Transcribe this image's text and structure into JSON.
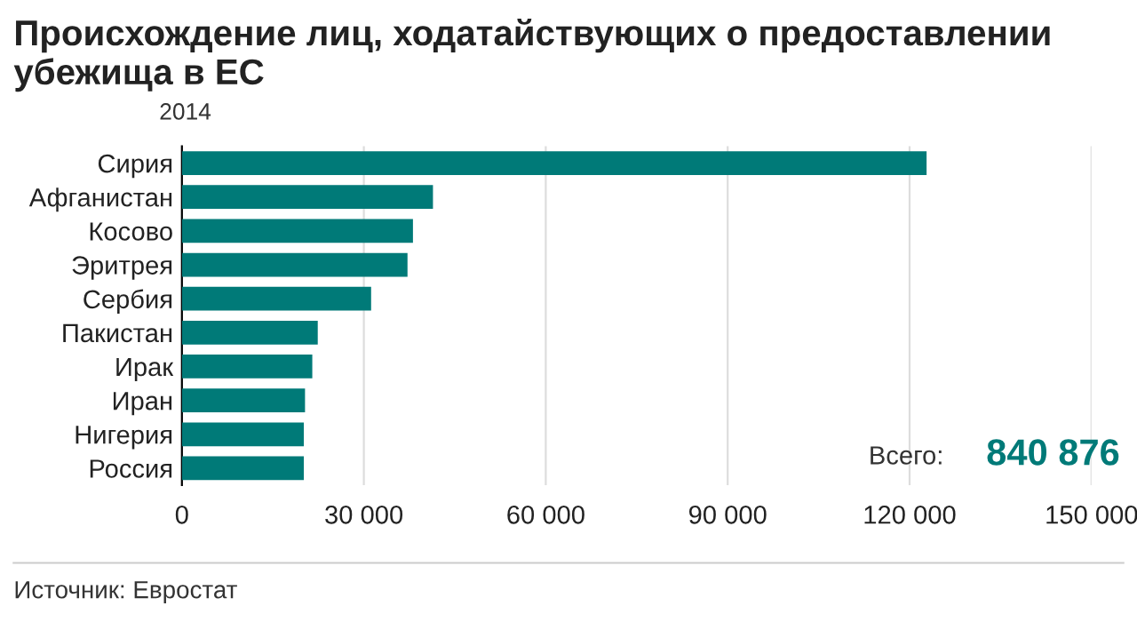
{
  "chart_data": {
    "type": "bar",
    "orientation": "horizontal",
    "title": "Происхождение лиц, ходатайствующих о предоставлении убежища в ЕС",
    "subtitle": "2014",
    "categories": [
      "Сирия",
      "Афганистан",
      "Косово",
      "Эритрея",
      "Сербия",
      "Пакистан",
      "Ирак",
      "Иран",
      "Нигерия",
      "Россия"
    ],
    "values": [
      122800,
      41400,
      38100,
      37200,
      31200,
      22400,
      21500,
      20300,
      20100,
      20100
    ],
    "color": "#007a78",
    "xlim": [
      0,
      150000
    ],
    "xticks": [
      {
        "value": 0,
        "label": "0"
      },
      {
        "value": 30000,
        "label": "30 000"
      },
      {
        "value": 60000,
        "label": "60 000"
      },
      {
        "value": 90000,
        "label": "90 000"
      },
      {
        "value": 120000,
        "label": "120 000"
      },
      {
        "value": 150000,
        "label": "150 000"
      }
    ],
    "grid": "x",
    "annotations": [
      "Всего:",
      "840 876",
      "Источник: Евростат"
    ]
  }
}
